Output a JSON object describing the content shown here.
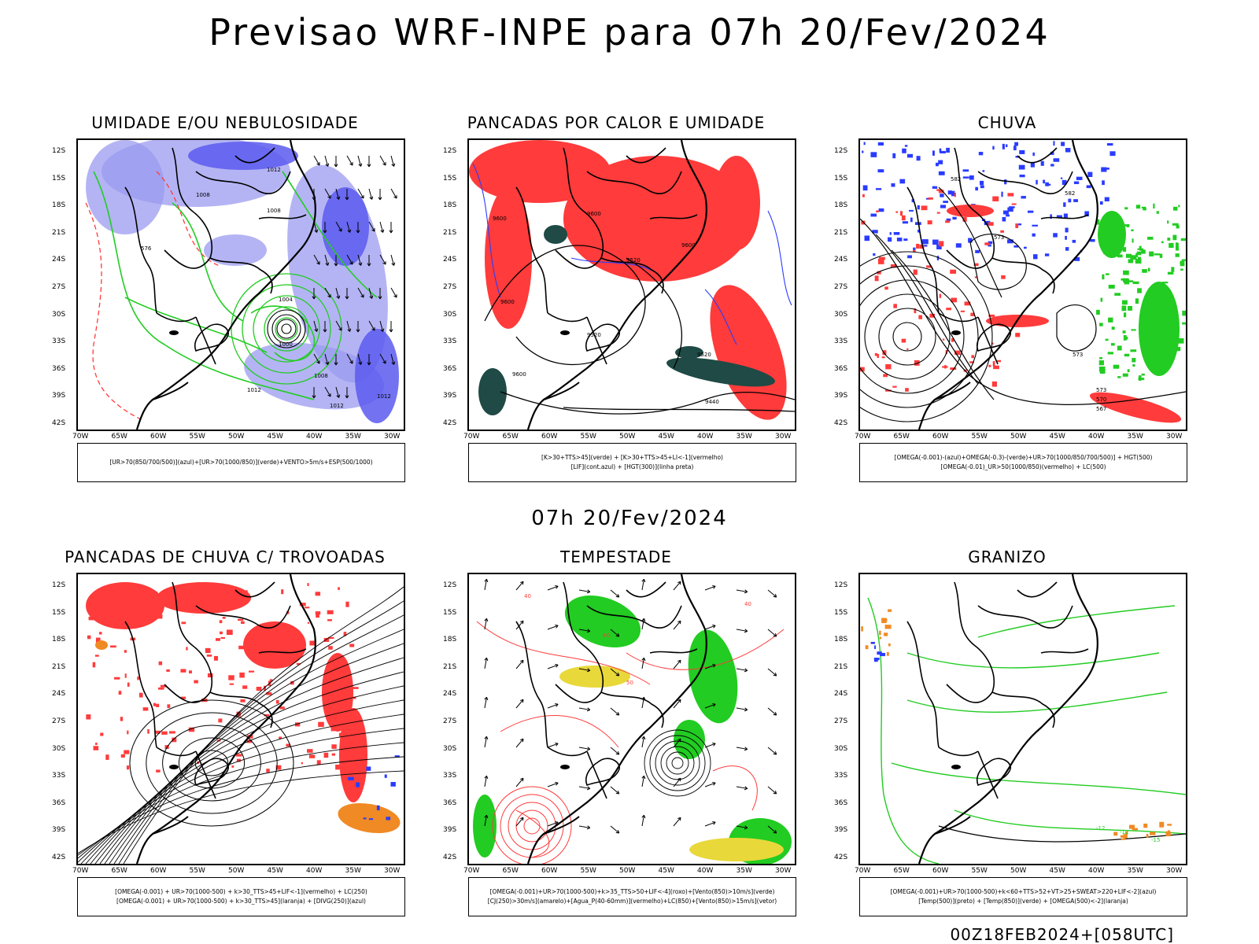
{
  "title": "Previsao WRF-INPE  para 07h 20/Fev/2024",
  "mid_title": "07h 20/Fev/2024",
  "footer": "00Z18FEB2024+[058UTC]",
  "lat_labels": [
    "12S",
    "15S",
    "18S",
    "21S",
    "24S",
    "27S",
    "30S",
    "33S",
    "36S",
    "39S",
    "42S"
  ],
  "lon_labels": [
    "70W",
    "65W",
    "60W",
    "55W",
    "50W",
    "45W",
    "40W",
    "35W",
    "30W"
  ],
  "colors": {
    "red": "#ff3b3b",
    "blue": "#2a3cff",
    "lightblue": "#9b9bf0",
    "green": "#22cc22",
    "darkgreen": "#1f4a45",
    "orange": "#f08a24",
    "yellow": "#e8d83a",
    "black": "#000000"
  },
  "panels": [
    {
      "title": "UMIDADE E/OU NEBULOSIDADE",
      "legend": [
        "[UR>70(850/700/500)](azul)+[UR>70(1000/850)](verde)+VENTO>5m/s+ESP(500/1000)"
      ],
      "labels": [
        "1012",
        "1008",
        "1008",
        "576",
        "1004",
        "1000",
        "1008",
        "1012",
        "1012",
        "1012"
      ]
    },
    {
      "title": "PANCADAS POR CALOR E UMIDADE",
      "legend": [
        "[K>30+TTS>45](verde) + [K>30+TTS>45+LI<-1](vermelho)",
        "[LIF](cont.azul) + [HGT(300)](linha preta)"
      ],
      "labels": [
        "9600",
        "9600",
        "9520",
        "9600",
        "9520",
        "9600",
        "9600",
        "9520",
        "9440"
      ]
    },
    {
      "title": "CHUVA",
      "legend": [
        "[OMEGA(-0.001)-(azul)+OMEGA(-0.3)-(verde)+UR>70(1000/850/700/500)] + HGT(500)",
        "[OMEGA(-0.01)_UR>50(1000/850)(vermelho) + LC(500)"
      ],
      "labels": [
        "582",
        "582",
        "573",
        "573",
        "573",
        "570",
        "567"
      ]
    },
    {
      "title": "PANCADAS DE CHUVA C/ TROVOADAS",
      "legend": [
        "[OMEGA(-0.001) + UR>70(1000-500) + k>30_TTS>45+LIF<-1](vermelho) + LC(250)",
        "[OMEGA(-0.001) + UR>70(1000-500) + k>30_TTS>45](laranja) + [DIVG(250)](azul)"
      ],
      "labels": []
    },
    {
      "title": "TEMPESTADE",
      "legend": [
        "[OMEGA(-0.001)+UR>70(1000-500)+k>35_TTS>50+LIF<-4](roxo)+[Vento(850)>10m/s](verde)",
        "[CJ(250)>30m/s](amarelo)+[Agua_P(40-60mm)](vermelho)+LC(850)+[Vento(850)>15m/s](vetor)"
      ],
      "labels": [
        "40",
        "50",
        "40",
        "40"
      ]
    },
    {
      "title": "GRANIZO",
      "legend": [
        "[OMEGA(-0.001)+UR>70(1000-500)+k<60+TTS>52+VT>25+SWEAT>220+LIF<-2](azul)",
        "[Temp(500)](preto) + [Temp(850)](verde) + [OMEGA(500)<-2](laranja)"
      ],
      "labels": [
        "-15",
        "-12",
        "-12"
      ]
    }
  ]
}
